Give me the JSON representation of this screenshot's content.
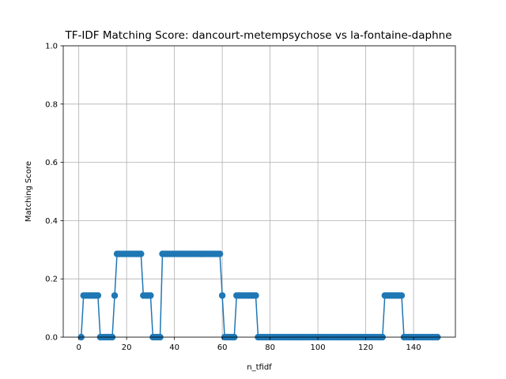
{
  "chart_data": {
    "type": "line",
    "title": "TF-IDF Matching Score: dancourt-metempsychose vs la-fontaine-daphne",
    "xlabel": "n_tfidf",
    "ylabel": "Matching Score",
    "xlim": [
      -6.5,
      157.5
    ],
    "ylim": [
      0,
      1.0
    ],
    "grid": true,
    "xticks": [
      0,
      20,
      40,
      60,
      80,
      100,
      120,
      140
    ],
    "xtick_labels": [
      "0",
      "20",
      "40",
      "60",
      "80",
      "100",
      "120",
      "140"
    ],
    "yticks": [
      0.0,
      0.2,
      0.4,
      0.6,
      0.8,
      1.0
    ],
    "ytick_labels": [
      "0.0",
      "0.2",
      "0.4",
      "0.6",
      "0.8",
      "1.0"
    ],
    "series_color": "#1f77b4",
    "segments": [
      {
        "from": 1,
        "to": 1,
        "value": 0.0
      },
      {
        "from": 2,
        "to": 8,
        "value": 0.1429
      },
      {
        "from": 9,
        "to": 14,
        "value": 0.0
      },
      {
        "from": 15,
        "to": 15,
        "value": 0.1429
      },
      {
        "from": 16,
        "to": 26,
        "value": 0.2857
      },
      {
        "from": 27,
        "to": 30,
        "value": 0.1429
      },
      {
        "from": 31,
        "to": 34,
        "value": 0.0
      },
      {
        "from": 35,
        "to": 59,
        "value": 0.2857
      },
      {
        "from": 60,
        "to": 60,
        "value": 0.1429
      },
      {
        "from": 61,
        "to": 65,
        "value": 0.0
      },
      {
        "from": 66,
        "to": 74,
        "value": 0.1429
      },
      {
        "from": 75,
        "to": 127,
        "value": 0.0
      },
      {
        "from": 128,
        "to": 135,
        "value": 0.1429
      },
      {
        "from": 136,
        "to": 150,
        "value": 0.0
      }
    ]
  }
}
